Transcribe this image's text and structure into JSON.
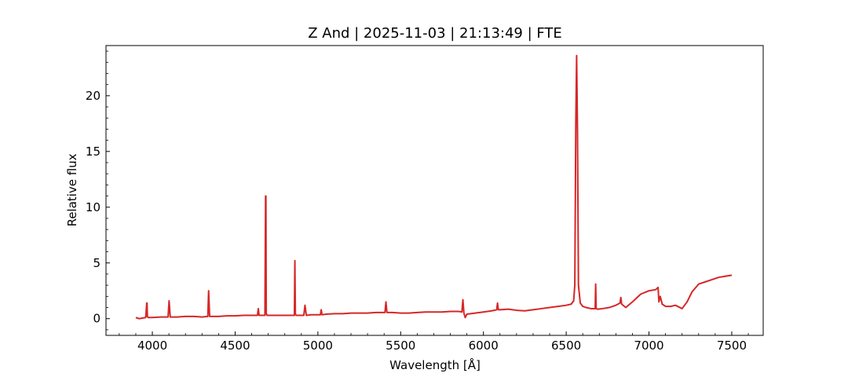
{
  "chart_data": {
    "type": "line",
    "title": "Z And | 2025-11-03 | 21:13:49 | FTE",
    "xlabel": "Wavelength [Å]",
    "ylabel": "Relative flux",
    "xlim": [
      3720,
      7690
    ],
    "ylim": [
      -1.5,
      24.5
    ],
    "x_ticks": [
      4000,
      4500,
      5000,
      5500,
      6000,
      6500,
      7000,
      7500
    ],
    "x_minor_ticks": [
      3800,
      3900,
      4100,
      4200,
      4300,
      4400,
      4600,
      4700,
      4800,
      4900,
      5100,
      5200,
      5300,
      5400,
      5600,
      5700,
      5800,
      5900,
      6100,
      6200,
      6300,
      6400,
      6600,
      6700,
      6800,
      6900,
      7100,
      7200,
      7300,
      7400,
      7600
    ],
    "y_ticks": [
      0,
      5,
      10,
      15,
      20
    ],
    "y_minor_ticks": [
      -1,
      1,
      2,
      3,
      4,
      6,
      7,
      8,
      9,
      11,
      12,
      13,
      14,
      16,
      17,
      18,
      19,
      21,
      22,
      23,
      24
    ],
    "grid": false,
    "series": [
      {
        "color": "#d62728",
        "x": [
          3900,
          3910,
          3920,
          3940,
          3960,
          3966,
          3968,
          3970,
          3975,
          4000,
          4050,
          4095,
          4101,
          4108,
          4150,
          4200,
          4250,
          4300,
          4335,
          4340,
          4346,
          4400,
          4450,
          4500,
          4550,
          4600,
          4635,
          4640,
          4645,
          4680,
          4684,
          4686,
          4688,
          4692,
          4720,
          4780,
          4850,
          4858,
          4861,
          4864,
          4870,
          4915,
          4922,
          4930,
          4960,
          5000,
          5015,
          5020,
          5025,
          5050,
          5100,
          5150,
          5200,
          5250,
          5300,
          5350,
          5405,
          5411,
          5417,
          5450,
          5500,
          5550,
          5600,
          5650,
          5700,
          5750,
          5800,
          5850,
          5870,
          5876,
          5882,
          5890,
          5900,
          5950,
          6000,
          6050,
          6080,
          6085,
          6090,
          6100,
          6150,
          6200,
          6250,
          6300,
          6350,
          6400,
          6450,
          6500,
          6530,
          6545,
          6552,
          6558,
          6563,
          6568,
          6574,
          6585,
          6600,
          6620,
          6650,
          6675,
          6678,
          6681,
          6690,
          6720,
          6760,
          6800,
          6825,
          6830,
          6835,
          6860,
          6900,
          6950,
          7000,
          7040,
          7055,
          7060,
          7068,
          7080,
          7100,
          7130,
          7160,
          7200,
          7230,
          7260,
          7300,
          7340,
          7380,
          7420,
          7460,
          7500
        ],
        "y": [
          0.1,
          0.05,
          0.0,
          0.05,
          0.1,
          1.4,
          1.4,
          0.2,
          0.1,
          0.1,
          0.15,
          0.15,
          1.6,
          0.15,
          0.15,
          0.2,
          0.2,
          0.15,
          0.2,
          2.5,
          0.2,
          0.2,
          0.25,
          0.25,
          0.3,
          0.3,
          0.3,
          0.9,
          0.3,
          0.3,
          11.0,
          11.0,
          0.5,
          0.3,
          0.3,
          0.3,
          0.3,
          0.3,
          5.2,
          0.4,
          0.3,
          0.3,
          1.2,
          0.3,
          0.35,
          0.35,
          0.35,
          0.8,
          0.35,
          0.4,
          0.45,
          0.45,
          0.5,
          0.5,
          0.5,
          0.55,
          0.55,
          1.5,
          0.55,
          0.55,
          0.5,
          0.5,
          0.55,
          0.6,
          0.6,
          0.6,
          0.65,
          0.65,
          0.6,
          1.7,
          0.5,
          0.1,
          0.4,
          0.5,
          0.6,
          0.7,
          0.8,
          1.4,
          0.8,
          0.8,
          0.85,
          0.75,
          0.7,
          0.8,
          0.9,
          1.0,
          1.1,
          1.2,
          1.3,
          1.6,
          3.0,
          17.5,
          23.6,
          17.0,
          3.0,
          1.4,
          1.1,
          1.0,
          0.9,
          0.9,
          3.1,
          0.9,
          0.85,
          0.9,
          1.0,
          1.2,
          1.4,
          1.9,
          1.3,
          1.0,
          1.5,
          2.2,
          2.5,
          2.6,
          2.8,
          1.5,
          2.0,
          1.3,
          1.1,
          1.1,
          1.2,
          0.9,
          1.5,
          2.4,
          3.1,
          3.3,
          3.5,
          3.7,
          3.8,
          3.9
        ]
      }
    ]
  }
}
